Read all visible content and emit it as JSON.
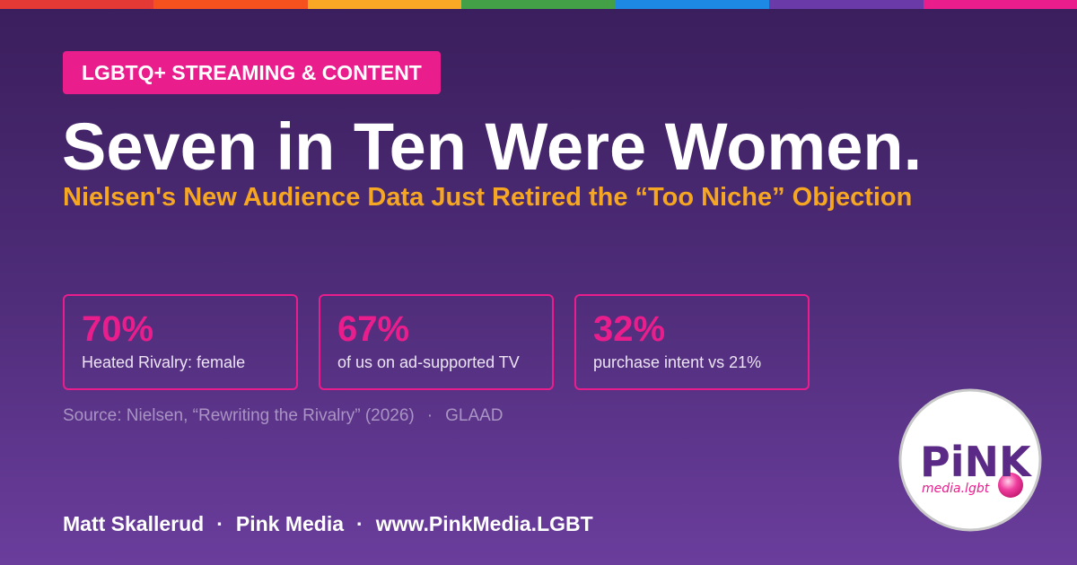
{
  "tag": "LGBTQ+ STREAMING & CONTENT",
  "title": "Seven in Ten Were Women.",
  "subtitle": "Nielsen's New Audience Data Just Retired the “Too Niche” Objection",
  "stats": [
    {
      "value": "70%",
      "label": "Heated Rivalry: female"
    },
    {
      "value": "67%",
      "label": "of us on ad-supported TV"
    },
    {
      "value": "32%",
      "label": "purchase intent vs 21%"
    }
  ],
  "source": {
    "items": [
      "Source: Nielsen, “Rewriting the Rivalry” (2026)",
      "GLAAD"
    ],
    "separator": "·"
  },
  "footer": {
    "items": [
      "Matt Skallerud",
      "Pink Media",
      "www.PinkMedia.LGBT"
    ],
    "separator": "·"
  },
  "logo": {
    "name": "PiNK",
    "domain": "media.lgbt"
  }
}
